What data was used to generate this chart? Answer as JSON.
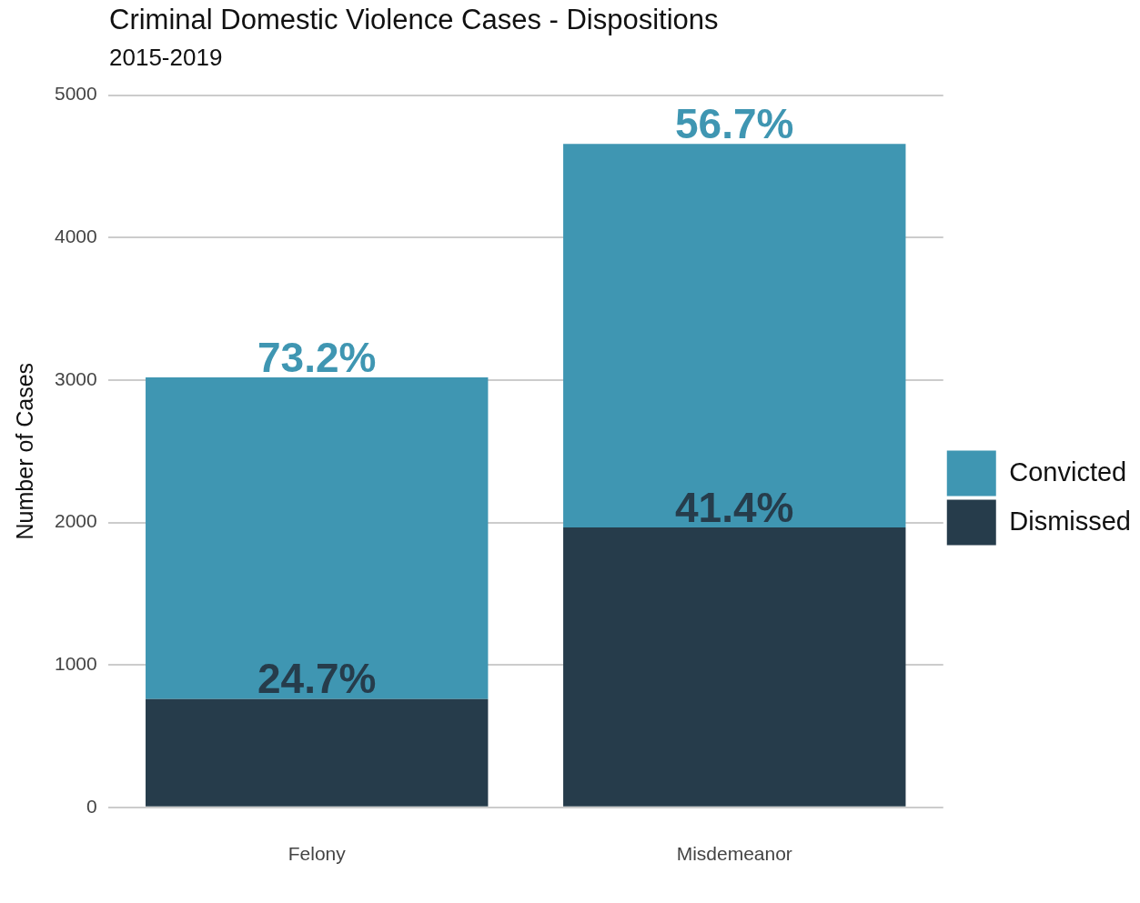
{
  "chart_data": {
    "type": "bar",
    "title": "Criminal Domestic Violence Cases - Dispositions",
    "subtitle": "2015-2019",
    "ylabel": "Number of Cases",
    "categories": [
      "Felony",
      "Misdemeanor"
    ],
    "series": [
      {
        "name": "Dismissed",
        "color": "#263c4b",
        "values": [
          760,
          1965
        ]
      },
      {
        "name": "Convicted",
        "color": "#3f96b2",
        "values": [
          2258,
          2692
        ]
      }
    ],
    "annotations": [
      {
        "text": "24.7%",
        "x": "Felony",
        "y": 760
      },
      {
        "text": "73.2%",
        "x": "Felony",
        "y": 3018
      },
      {
        "text": "41.4%",
        "x": "Misdemeanor",
        "y": 1965
      },
      {
        "text": "56.7%",
        "x": "Misdemeanor",
        "y": 4657
      }
    ],
    "stacked": true,
    "ylim": [
      0,
      5000
    ],
    "yticks": [
      0,
      1000,
      2000,
      3000,
      4000,
      5000
    ],
    "grid": "y",
    "legend": "right"
  }
}
